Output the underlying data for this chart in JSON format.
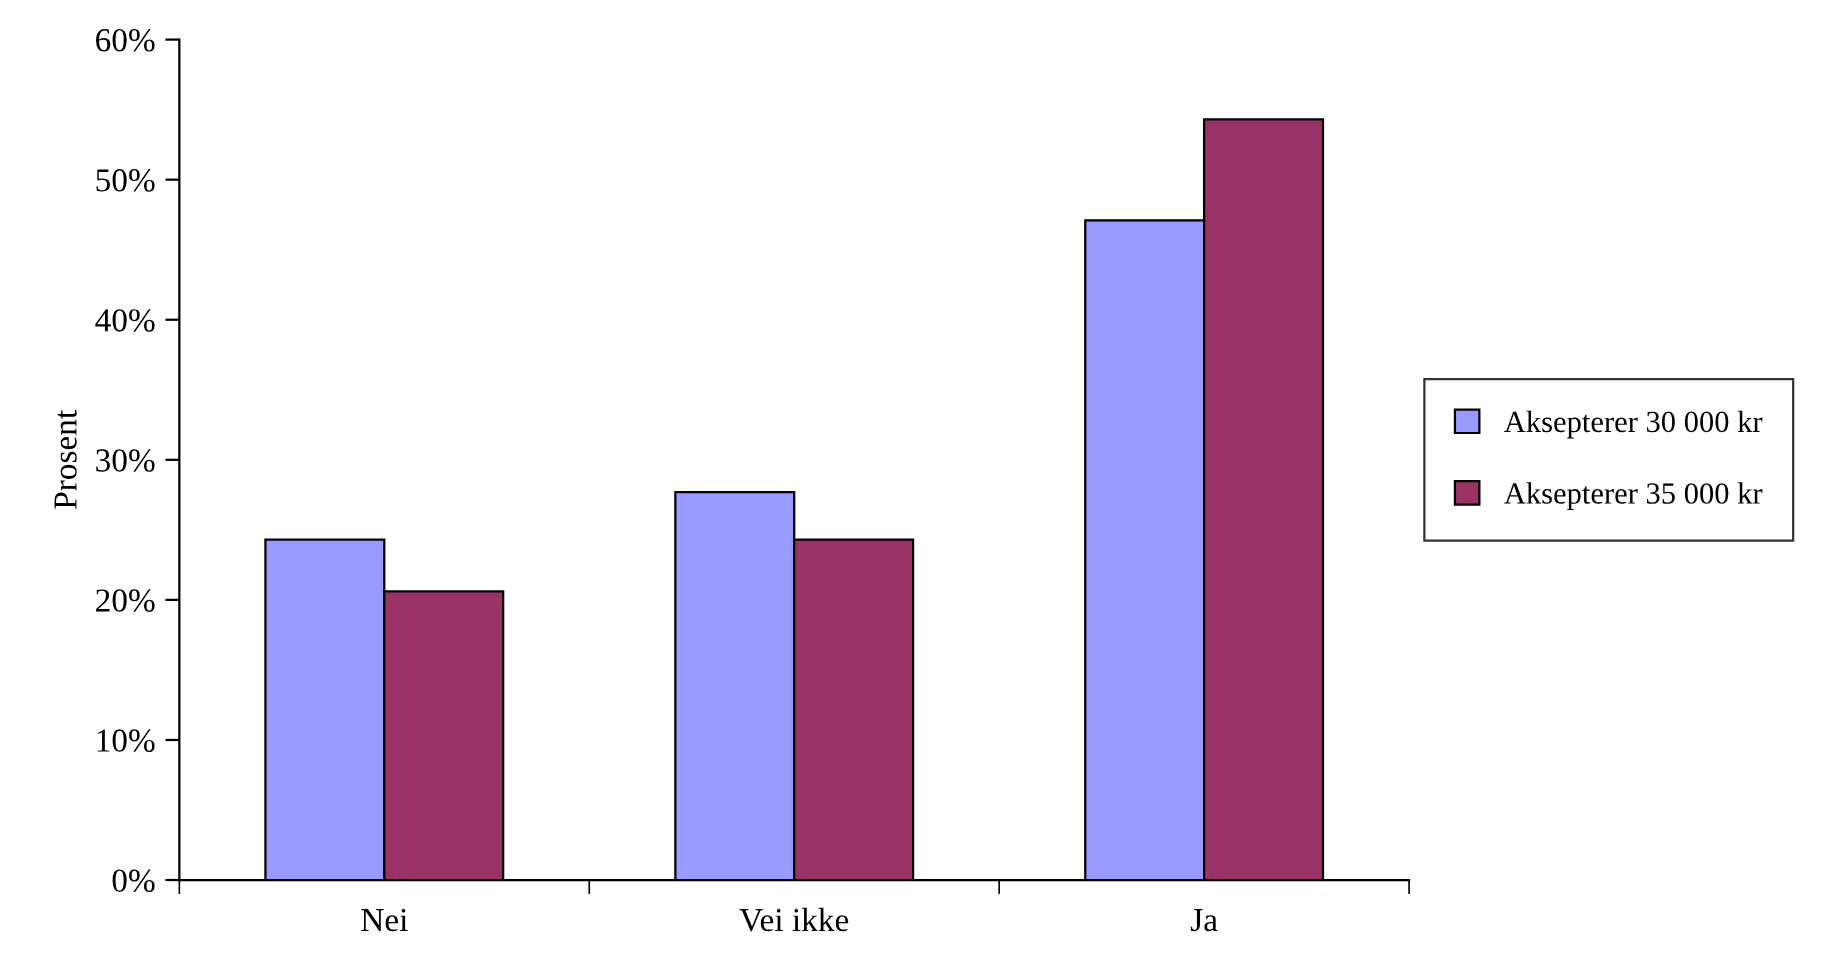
{
  "chart_data": {
    "type": "bar",
    "ylabel": "Prosent",
    "categories": [
      "Nei",
      "Vei ikke",
      "Ja"
    ],
    "series": [
      {
        "name": "Aksepterer 30 000 kr",
        "color": "#9999ff",
        "values": [
          24.3,
          27.7,
          47.1
        ]
      },
      {
        "name": "Aksepterer 35 000 kr",
        "color": "#993366",
        "values": [
          20.6,
          24.3,
          54.3
        ]
      }
    ],
    "ylim": [
      0,
      60
    ],
    "yticks": [
      {
        "value": 0,
        "label": "0%"
      },
      {
        "value": 10,
        "label": "10%"
      },
      {
        "value": 20,
        "label": "20%"
      },
      {
        "value": 30,
        "label": "30%"
      },
      {
        "value": 40,
        "label": "40%"
      },
      {
        "value": 50,
        "label": "50%"
      },
      {
        "value": 60,
        "label": "60%"
      }
    ],
    "grid": false,
    "legend": "right"
  }
}
